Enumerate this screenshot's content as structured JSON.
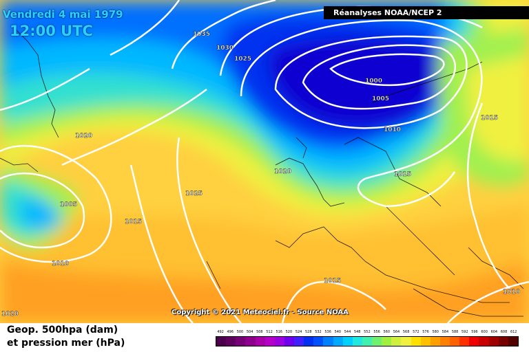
{
  "header": {
    "date": "Vendredi 4 mai 1979",
    "time": "12:00 UTC",
    "source": "Réanalyses NOAA/NCEP 2"
  },
  "copyright": "Copyright © 2021 Meteociel.fr - Source NOAA",
  "legend": {
    "line1": "Geop. 500hpa (dam)",
    "line2": "et pression mer (hPa)",
    "scale_values": [
      "492",
      "496",
      "500",
      "504",
      "508",
      "512",
      "516",
      "520",
      "524",
      "528",
      "532",
      "536",
      "540",
      "544",
      "548",
      "552",
      "556",
      "560",
      "564",
      "568",
      "572",
      "576",
      "580",
      "584",
      "588",
      "592",
      "596",
      "600",
      "604",
      "608",
      "612"
    ],
    "scale_colors": [
      "#4a004a",
      "#5e005e",
      "#760076",
      "#8c008c",
      "#a600a6",
      "#b400c8",
      "#9a00e0",
      "#6e00f0",
      "#4020ff",
      "#0030f0",
      "#0050ff",
      "#0080ff",
      "#00a8ff",
      "#00d0ff",
      "#20e8e0",
      "#40f0b0",
      "#70f070",
      "#a0f040",
      "#d0f040",
      "#f0f040",
      "#ffe000",
      "#ffc000",
      "#ffa000",
      "#ff8000",
      "#ff6000",
      "#ff3000",
      "#f00000",
      "#c80000",
      "#a00000",
      "#780000",
      "#500000"
    ]
  },
  "isobars": [
    {
      "label": "1035"
    },
    {
      "label": "1030"
    },
    {
      "label": "1025"
    },
    {
      "label": "1000"
    },
    {
      "label": "1005"
    },
    {
      "label": "1010"
    },
    {
      "label": "1015"
    },
    {
      "label": "1020"
    },
    {
      "label": "1015"
    },
    {
      "label": "1020"
    },
    {
      "label": "1005"
    },
    {
      "label": "1015"
    },
    {
      "label": "1025"
    },
    {
      "label": "1010"
    },
    {
      "label": "1015"
    },
    {
      "label": "1010"
    },
    {
      "label": "1020"
    }
  ],
  "colors": {
    "deep_low": "#0a10c8",
    "low": "#0050ff",
    "mid_blue": "#00b0ff",
    "cyan": "#30e0e0",
    "green": "#80e060",
    "yellow": "#f0f040",
    "light_orange": "#ffd030",
    "orange": "#ffa020"
  }
}
